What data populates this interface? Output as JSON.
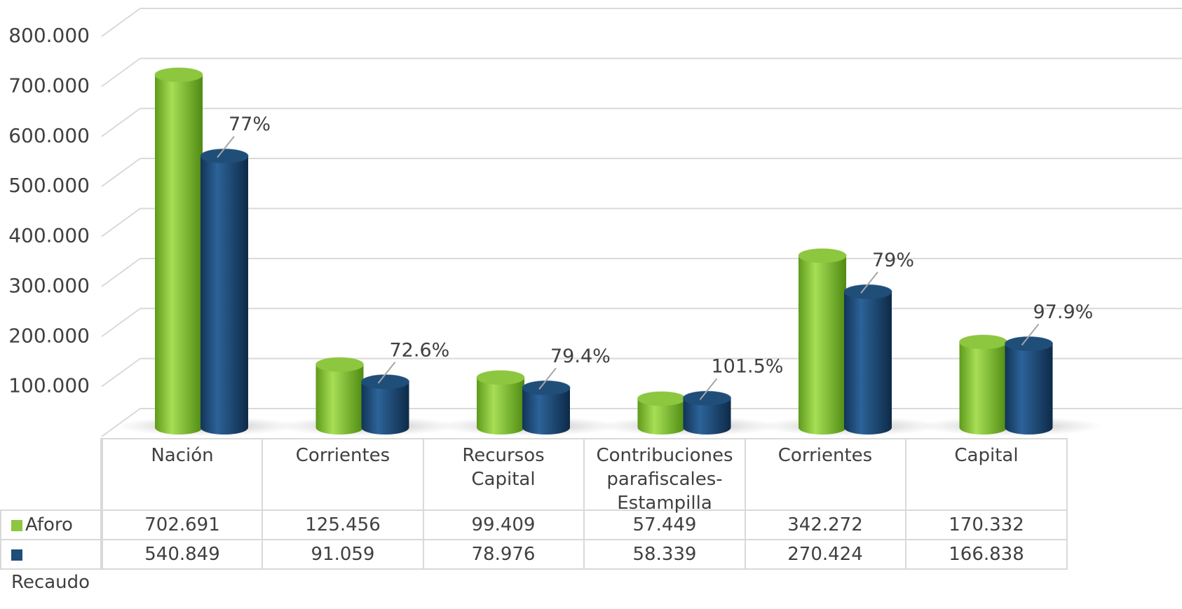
{
  "chart_data": {
    "type": "bar3d",
    "categories": [
      "Nación",
      "Corrientes",
      "Recursos\nCapital",
      "Contribuciones\nparafiscales-\nEstampilla",
      "Corrientes",
      "Capital"
    ],
    "series": [
      {
        "name": "Aforo",
        "color": "#8dc63f",
        "values": [
          702691,
          125456,
          99409,
          57449,
          342272,
          170332
        ],
        "value_labels": [
          "702.691",
          "125.456",
          "99.409",
          "57.449",
          "342.272",
          "170.332"
        ]
      },
      {
        "name": "Recaudo",
        "color": "#1f4e79",
        "values": [
          540849,
          91059,
          78976,
          58339,
          270424,
          166838
        ],
        "value_labels": [
          "540.849",
          "91.059",
          "78.976",
          "58.339",
          "270.424",
          "166.838"
        ]
      }
    ],
    "annotations": [
      "77%",
      "72.6%",
      "79.4%",
      "101.5%",
      "79%",
      "97.9%"
    ],
    "ylim": [
      0,
      800000
    ],
    "yticks": [
      {
        "value": 100000,
        "label": "100.000"
      },
      {
        "value": 200000,
        "label": "200.000"
      },
      {
        "value": 300000,
        "label": "300.000"
      },
      {
        "value": 400000,
        "label": "400.000"
      },
      {
        "value": 500000,
        "label": "500.000"
      },
      {
        "value": 600000,
        "label": "600.000"
      },
      {
        "value": 700000,
        "label": "700.000"
      },
      {
        "value": 800000,
        "label": "800.000"
      }
    ],
    "grid": true
  }
}
